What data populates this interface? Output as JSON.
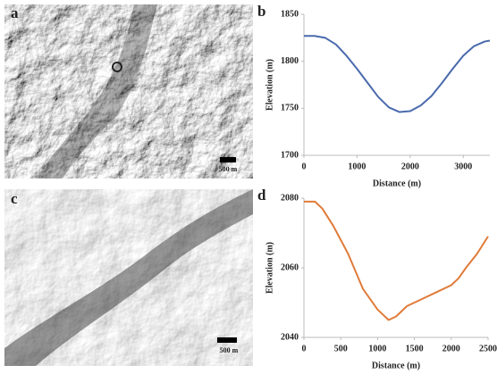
{
  "images": [
    {
      "panel_label": "a",
      "scale_bar": "500 m"
    },
    {
      "panel_label": "c",
      "scale_bar": "500 m"
    }
  ],
  "chart_data": [
    {
      "type": "line",
      "panel_label": "b",
      "x_label": "Distance (m)",
      "y_label": "Elevation (m)",
      "color": "#4a6aad",
      "x": [
        0,
        200,
        400,
        600,
        800,
        1000,
        1200,
        1400,
        1600,
        1800,
        2000,
        2200,
        2400,
        2600,
        2800,
        3000,
        3200,
        3400,
        3500
      ],
      "values": [
        1827,
        1827,
        1825,
        1818,
        1806,
        1792,
        1777,
        1762,
        1751,
        1746,
        1747,
        1753,
        1763,
        1777,
        1792,
        1806,
        1816,
        1821,
        1822
      ],
      "xlim": [
        0,
        3500
      ],
      "xticks": [
        0,
        1000,
        2000,
        3000
      ],
      "ylim": [
        1700,
        1850
      ],
      "yticks": [
        1700,
        1750,
        1800,
        1850
      ]
    },
    {
      "type": "line",
      "panel_label": "d",
      "x_label": "Distance (m)",
      "y_label": "Elevation (m)",
      "color": "#e07b39",
      "x": [
        0,
        150,
        250,
        400,
        600,
        800,
        1000,
        1150,
        1250,
        1400,
        1600,
        1800,
        2000,
        2100,
        2200,
        2350,
        2500
      ],
      "values": [
        2079,
        2079,
        2077,
        2072,
        2064,
        2054,
        2048,
        2045,
        2046,
        2049,
        2051,
        2053,
        2055,
        2057,
        2060,
        2064,
        2069
      ],
      "xlim": [
        0,
        2500
      ],
      "xticks": [
        0,
        500,
        1000,
        1500,
        2000,
        2500
      ],
      "ylim": [
        2040,
        2080
      ],
      "yticks": [
        2040,
        2060,
        2080
      ]
    }
  ]
}
